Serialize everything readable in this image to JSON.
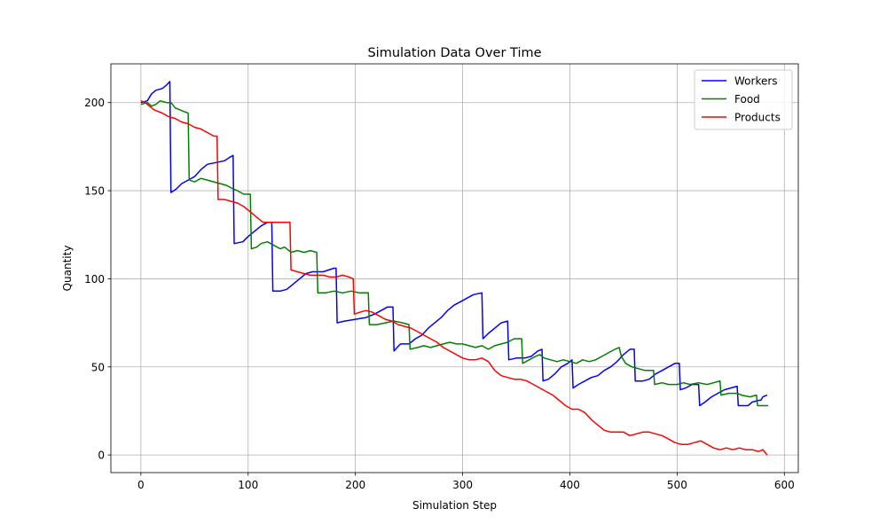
{
  "chart_data": {
    "type": "line",
    "title": "Simulation Data Over Time",
    "xlabel": "Simulation Step",
    "ylabel": "Quantity",
    "xlim": [
      -28,
      613
    ],
    "ylim": [
      -10,
      222
    ],
    "xticks": [
      0,
      100,
      200,
      300,
      400,
      500,
      600
    ],
    "yticks": [
      0,
      50,
      100,
      150,
      200
    ],
    "grid": true,
    "legend_position": "top-right",
    "series": [
      {
        "name": "Workers",
        "color": "#0000ff",
        "points": [
          [
            0,
            200
          ],
          [
            6,
            201
          ],
          [
            10,
            205
          ],
          [
            14,
            207
          ],
          [
            20,
            208
          ],
          [
            24,
            210
          ],
          [
            27,
            212
          ],
          [
            28,
            149
          ],
          [
            33,
            151
          ],
          [
            38,
            154
          ],
          [
            44,
            156
          ],
          [
            50,
            158
          ],
          [
            56,
            162
          ],
          [
            62,
            165
          ],
          [
            70,
            166
          ],
          [
            78,
            167
          ],
          [
            83,
            169
          ],
          [
            86,
            170
          ],
          [
            87,
            120
          ],
          [
            95,
            121
          ],
          [
            100,
            124
          ],
          [
            106,
            127
          ],
          [
            112,
            130
          ],
          [
            118,
            132
          ],
          [
            122,
            132
          ],
          [
            123,
            93
          ],
          [
            130,
            93
          ],
          [
            136,
            94
          ],
          [
            142,
            97
          ],
          [
            148,
            100
          ],
          [
            154,
            103
          ],
          [
            160,
            104
          ],
          [
            170,
            104
          ],
          [
            180,
            106
          ],
          [
            182,
            106
          ],
          [
            183,
            75
          ],
          [
            190,
            76
          ],
          [
            200,
            77
          ],
          [
            210,
            78
          ],
          [
            218,
            80
          ],
          [
            224,
            82
          ],
          [
            230,
            84
          ],
          [
            235,
            84
          ],
          [
            236,
            59
          ],
          [
            242,
            63
          ],
          [
            250,
            63
          ],
          [
            256,
            66
          ],
          [
            262,
            68
          ],
          [
            268,
            72
          ],
          [
            274,
            75
          ],
          [
            280,
            78
          ],
          [
            286,
            82
          ],
          [
            292,
            85
          ],
          [
            298,
            87
          ],
          [
            304,
            89
          ],
          [
            310,
            91
          ],
          [
            318,
            92
          ],
          [
            319,
            66
          ],
          [
            324,
            69
          ],
          [
            330,
            72
          ],
          [
            336,
            75
          ],
          [
            342,
            76
          ],
          [
            343,
            54
          ],
          [
            350,
            55
          ],
          [
            358,
            55
          ],
          [
            364,
            56
          ],
          [
            370,
            59
          ],
          [
            374,
            60
          ],
          [
            375,
            42
          ],
          [
            380,
            43
          ],
          [
            386,
            46
          ],
          [
            392,
            50
          ],
          [
            398,
            52
          ],
          [
            402,
            54
          ],
          [
            403,
            38
          ],
          [
            408,
            40
          ],
          [
            414,
            42
          ],
          [
            420,
            44
          ],
          [
            426,
            45
          ],
          [
            432,
            48
          ],
          [
            438,
            50
          ],
          [
            444,
            53
          ],
          [
            450,
            57
          ],
          [
            456,
            60
          ],
          [
            460,
            60
          ],
          [
            461,
            42
          ],
          [
            468,
            42
          ],
          [
            474,
            43
          ],
          [
            480,
            46
          ],
          [
            486,
            48
          ],
          [
            492,
            50
          ],
          [
            498,
            52
          ],
          [
            502,
            52
          ],
          [
            503,
            37
          ],
          [
            508,
            38
          ],
          [
            514,
            40
          ],
          [
            520,
            40
          ],
          [
            521,
            28
          ],
          [
            526,
            30
          ],
          [
            532,
            33
          ],
          [
            538,
            35
          ],
          [
            544,
            37
          ],
          [
            550,
            38
          ],
          [
            556,
            39
          ],
          [
            557,
            28
          ],
          [
            566,
            28
          ],
          [
            570,
            30
          ],
          [
            576,
            31
          ],
          [
            578,
            31
          ],
          [
            580,
            33
          ],
          [
            584,
            34
          ]
        ]
      },
      {
        "name": "Food",
        "color": "#008000",
        "points": [
          [
            0,
            199
          ],
          [
            6,
            200
          ],
          [
            10,
            198
          ],
          [
            14,
            199
          ],
          [
            18,
            201
          ],
          [
            24,
            200
          ],
          [
            28,
            200
          ],
          [
            32,
            197
          ],
          [
            36,
            196
          ],
          [
            40,
            195
          ],
          [
            44,
            194
          ],
          [
            45,
            156
          ],
          [
            50,
            155
          ],
          [
            56,
            157
          ],
          [
            62,
            156
          ],
          [
            68,
            155
          ],
          [
            74,
            154
          ],
          [
            80,
            153
          ],
          [
            86,
            151
          ],
          [
            90,
            150
          ],
          [
            96,
            148
          ],
          [
            100,
            148
          ],
          [
            102,
            148
          ],
          [
            103,
            117
          ],
          [
            108,
            118
          ],
          [
            112,
            120
          ],
          [
            118,
            121
          ],
          [
            124,
            119
          ],
          [
            130,
            117
          ],
          [
            134,
            118
          ],
          [
            140,
            115
          ],
          [
            146,
            116
          ],
          [
            152,
            115
          ],
          [
            158,
            116
          ],
          [
            164,
            115
          ],
          [
            165,
            92
          ],
          [
            172,
            92
          ],
          [
            180,
            93
          ],
          [
            188,
            92
          ],
          [
            196,
            93
          ],
          [
            204,
            92
          ],
          [
            212,
            92
          ],
          [
            213,
            74
          ],
          [
            220,
            74
          ],
          [
            228,
            75
          ],
          [
            236,
            76
          ],
          [
            244,
            75
          ],
          [
            250,
            74
          ],
          [
            251,
            60
          ],
          [
            258,
            61
          ],
          [
            264,
            62
          ],
          [
            270,
            61
          ],
          [
            276,
            62
          ],
          [
            282,
            63
          ],
          [
            288,
            64
          ],
          [
            294,
            63
          ],
          [
            300,
            63
          ],
          [
            306,
            62
          ],
          [
            312,
            61
          ],
          [
            318,
            62
          ],
          [
            324,
            60
          ],
          [
            330,
            62
          ],
          [
            336,
            63
          ],
          [
            342,
            64
          ],
          [
            348,
            66
          ],
          [
            355,
            66
          ],
          [
            356,
            52
          ],
          [
            362,
            54
          ],
          [
            368,
            56
          ],
          [
            372,
            57
          ],
          [
            376,
            55
          ],
          [
            382,
            54
          ],
          [
            388,
            53
          ],
          [
            394,
            54
          ],
          [
            400,
            53
          ],
          [
            406,
            52
          ],
          [
            412,
            54
          ],
          [
            418,
            53
          ],
          [
            424,
            54
          ],
          [
            430,
            56
          ],
          [
            436,
            58
          ],
          [
            442,
            60
          ],
          [
            446,
            61
          ],
          [
            448,
            56
          ],
          [
            452,
            52
          ],
          [
            458,
            50
          ],
          [
            464,
            49
          ],
          [
            470,
            48
          ],
          [
            476,
            48
          ],
          [
            478,
            48
          ],
          [
            479,
            40
          ],
          [
            486,
            41
          ],
          [
            492,
            40
          ],
          [
            500,
            40
          ],
          [
            506,
            41
          ],
          [
            512,
            40
          ],
          [
            520,
            41
          ],
          [
            528,
            40
          ],
          [
            534,
            41
          ],
          [
            540,
            42
          ],
          [
            541,
            34
          ],
          [
            548,
            35
          ],
          [
            556,
            35
          ],
          [
            560,
            34
          ],
          [
            568,
            33
          ],
          [
            574,
            34
          ],
          [
            575,
            28
          ],
          [
            585,
            28
          ]
        ]
      },
      {
        "name": "Products",
        "color": "#ff0000",
        "points": [
          [
            0,
            201
          ],
          [
            4,
            200
          ],
          [
            8,
            198
          ],
          [
            12,
            196
          ],
          [
            16,
            195
          ],
          [
            20,
            194
          ],
          [
            26,
            192
          ],
          [
            32,
            191
          ],
          [
            38,
            189
          ],
          [
            44,
            188
          ],
          [
            50,
            186
          ],
          [
            56,
            185
          ],
          [
            62,
            183
          ],
          [
            68,
            181
          ],
          [
            71,
            181
          ],
          [
            72,
            145
          ],
          [
            78,
            145
          ],
          [
            84,
            144
          ],
          [
            90,
            143
          ],
          [
            96,
            141
          ],
          [
            100,
            139
          ],
          [
            106,
            136
          ],
          [
            110,
            134
          ],
          [
            114,
            132
          ],
          [
            120,
            132
          ],
          [
            126,
            132
          ],
          [
            132,
            132
          ],
          [
            139,
            132
          ],
          [
            140,
            105
          ],
          [
            146,
            104
          ],
          [
            152,
            103
          ],
          [
            158,
            102
          ],
          [
            164,
            102
          ],
          [
            170,
            102
          ],
          [
            176,
            101
          ],
          [
            182,
            101
          ],
          [
            188,
            102
          ],
          [
            194,
            101
          ],
          [
            198,
            100
          ],
          [
            199,
            80
          ],
          [
            204,
            81
          ],
          [
            210,
            82
          ],
          [
            216,
            81
          ],
          [
            222,
            79
          ],
          [
            228,
            77
          ],
          [
            234,
            76
          ],
          [
            240,
            74
          ],
          [
            246,
            73
          ],
          [
            252,
            72
          ],
          [
            258,
            70
          ],
          [
            264,
            68
          ],
          [
            270,
            66
          ],
          [
            276,
            64
          ],
          [
            282,
            61
          ],
          [
            288,
            59
          ],
          [
            294,
            57
          ],
          [
            300,
            55
          ],
          [
            306,
            54
          ],
          [
            312,
            54
          ],
          [
            318,
            55
          ],
          [
            324,
            53
          ],
          [
            330,
            48
          ],
          [
            336,
            45
          ],
          [
            342,
            44
          ],
          [
            348,
            43
          ],
          [
            354,
            43
          ],
          [
            360,
            42
          ],
          [
            366,
            40
          ],
          [
            372,
            38
          ],
          [
            378,
            36
          ],
          [
            384,
            34
          ],
          [
            390,
            31
          ],
          [
            396,
            28
          ],
          [
            402,
            26
          ],
          [
            408,
            26
          ],
          [
            414,
            24
          ],
          [
            420,
            20
          ],
          [
            426,
            17
          ],
          [
            432,
            14
          ],
          [
            438,
            13
          ],
          [
            444,
            13
          ],
          [
            450,
            13
          ],
          [
            456,
            11
          ],
          [
            462,
            12
          ],
          [
            468,
            13
          ],
          [
            474,
            13
          ],
          [
            480,
            12
          ],
          [
            486,
            11
          ],
          [
            492,
            9
          ],
          [
            498,
            7
          ],
          [
            504,
            6
          ],
          [
            510,
            6
          ],
          [
            516,
            7
          ],
          [
            522,
            8
          ],
          [
            528,
            6
          ],
          [
            534,
            4
          ],
          [
            540,
            3
          ],
          [
            546,
            4
          ],
          [
            552,
            3
          ],
          [
            558,
            4
          ],
          [
            564,
            3
          ],
          [
            570,
            3
          ],
          [
            576,
            2
          ],
          [
            580,
            3
          ],
          [
            584,
            0
          ]
        ]
      }
    ]
  }
}
